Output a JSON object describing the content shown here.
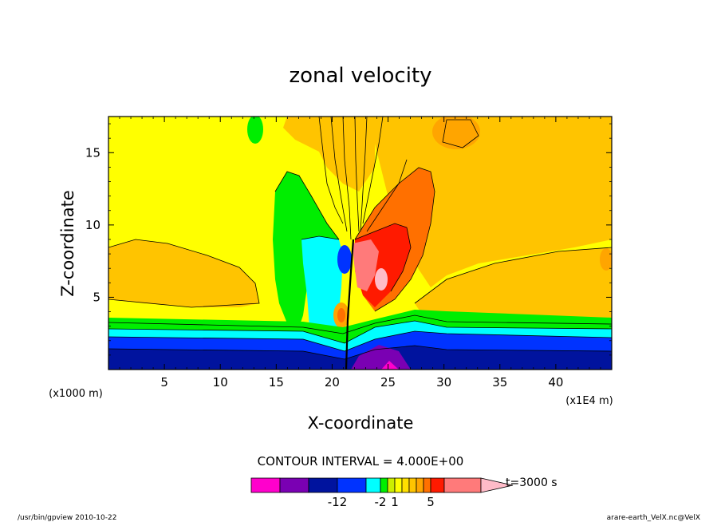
{
  "chart_data": {
    "type": "heatmap",
    "title": "zonal velocity",
    "xlabel": "X-coordinate",
    "ylabel": "Z-coordinate",
    "x_unit_left": "(x1000 m)",
    "x_unit_right": "(x1E4 m)",
    "x_ticks": [
      "5",
      "10",
      "15",
      "20",
      "25",
      "30",
      "35",
      "40"
    ],
    "y_ticks": [
      "5",
      "10",
      "15"
    ],
    "xlim": [
      0,
      45
    ],
    "ylim": [
      0,
      17.5
    ],
    "contour_interval_text": "CONTOUR INTERVAL = 4.000E+00",
    "time_label": "t=3000 s",
    "colorbar": {
      "colors": [
        "#ff00cc",
        "#7a00b3",
        "#00139e",
        "#0033ff",
        "#00ffff",
        "#00ee00",
        "#ccee00",
        "#ffff00",
        "#ffe000",
        "#ffc400",
        "#ffa500",
        "#ff7000",
        "#ff1a00",
        "#ff7a7a",
        "#ffbbc8"
      ],
      "tick_labels": [
        "-12",
        "-2",
        "1",
        "5"
      ]
    },
    "annotations": {
      "program": "/usr/bin/gpview   2010-10-22",
      "file": "arare-earth_VelX.nc@VelX"
    }
  }
}
